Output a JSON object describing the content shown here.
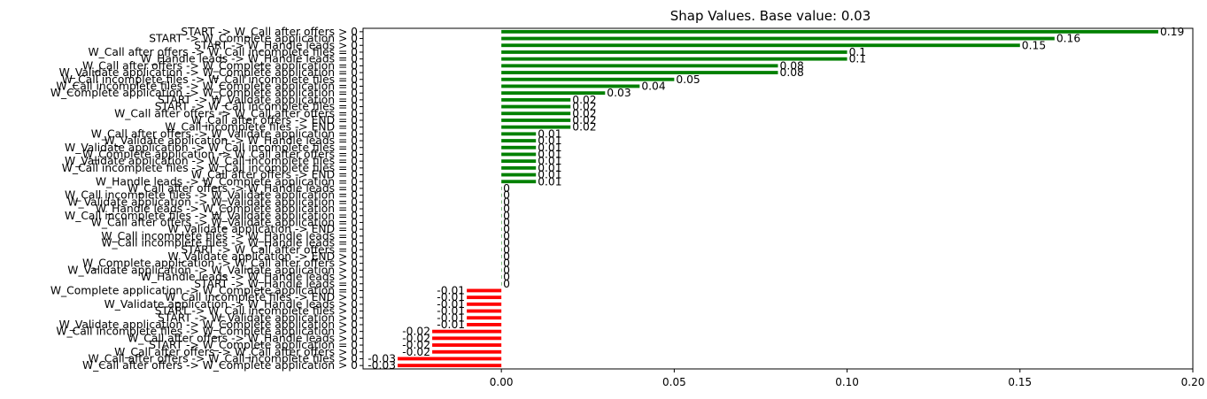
{
  "chart_data": {
    "type": "bar",
    "orientation": "horizontal",
    "title": "Shap Values. Base value: 0.03",
    "xlabel": "",
    "ylabel": "",
    "xlim": [
      -0.04,
      0.2
    ],
    "xticks": [
      "0.00",
      "0.05",
      "0.10",
      "0.15",
      "0.20"
    ],
    "xtick_values": [
      0,
      0.05,
      0.1,
      0.15,
      0.2
    ],
    "grid": false,
    "legend": "none",
    "colors": {
      "positive": "#008000",
      "negative": "#ff0000",
      "zero": "#008000"
    },
    "categories": [
      "START -> W_Call after offers > 0",
      "START -> W_Complete application > 0",
      "START -> W_Handle leads > 0",
      "W_Call after offers -> W_Call incomplete files = 0",
      "W_Handle leads -> W_Handle leads = 0",
      "W_Call after offers -> W_Complete application = 0",
      "W_Validate application -> W_Complete application = 0",
      "W_Call incomplete files -> W_Call incomplete files = 0",
      "W_Call incomplete files -> W_Complete application = 0",
      "W_Complete application -> W_Complete application = 0",
      "START -> W_Validate application = 0",
      "START -> W_Call incomplete files = 0",
      "W_Call after offers -> W_Call after offers = 0",
      "W_Call after offers -> END = 0",
      "W_Call incomplete files -> END = 0",
      "W_Call after offers -> W_Validate application = 0",
      "W_Validate application -> W_Handle leads = 0",
      "W_Validate application -> W_Call incomplete files = 0",
      "W_Complete application -> W_Call after offers = 0",
      "W_Validate application -> W_Call incomplete files = 0",
      "W_Call incomplete files -> W_Call incomplete files = 0",
      "W_Call after offers -> END = 0",
      "W_Handle leads -> W_Complete application = 0",
      "W_Call after offers -> W_Handle leads = 0",
      "W_Call incomplete files -> W_Validate application = 0",
      "W_Validate application -> W_Validate application = 0",
      "W_Handle leads -> W_Complete application = 0",
      "W_Call incomplete files -> W_Validate application = 0",
      "W_Call after offers -> W_Validate application = 0",
      "W_Validate application -> END = 0",
      "W_Call incomplete files -> W_Handle leads = 0",
      "W_Call incomplete files -> W_Handle leads = 0",
      "START -> W_Call after offers = 0",
      "W_Validate application -> END > 0",
      "W_Complete application -> W_Call after offers > 0",
      "W_Validate application -> W_Validate application > 0",
      "W_Handle leads -> W_Handle leads > 0",
      "START -> W_Handle leads = 0",
      "W_Complete application -> W_Complete application = 0",
      "W_Call incomplete files -> END > 0",
      "W_Validate application -> W_Handle leads > 0",
      "START -> W_Call incomplete files > 0",
      "START -> W_Validate application > 0",
      "W_Validate application -> W_Complete application > 0",
      "W_Call incomplete files -> W_Complete application > 0",
      "W_Call after offers -> W_Handle leads > 0",
      "START -> W_Complete application = 0",
      "W_Call after offers -> W_Call after offers > 0",
      "W_Call after offers -> W_Call incomplete files > 0",
      "W_Call after offers -> W_Complete application > 0"
    ],
    "values": [
      0.19,
      0.16,
      0.15,
      0.1,
      0.1,
      0.08,
      0.08,
      0.05,
      0.04,
      0.03,
      0.02,
      0.02,
      0.02,
      0.02,
      0.02,
      0.01,
      0.01,
      0.01,
      0.01,
      0.01,
      0.01,
      0.01,
      0.01,
      0,
      0,
      0,
      0,
      0,
      0,
      0,
      0,
      0,
      0,
      0,
      0,
      0,
      0,
      0,
      -0.01,
      -0.01,
      -0.01,
      -0.01,
      -0.01,
      -0.01,
      -0.02,
      -0.02,
      -0.02,
      -0.02,
      -0.03,
      -0.03
    ],
    "value_labels": [
      "0.19",
      "0.16",
      "0.15",
      "0.1",
      "0.1",
      "0.08",
      "0.08",
      "0.05",
      "0.04",
      "0.03",
      "0.02",
      "0.02",
      "0.02",
      "0.02",
      "0.02",
      "0.01",
      "0.01",
      "0.01",
      "0.01",
      "0.01",
      "0.01",
      "0.01",
      "0.01",
      "0",
      "0",
      "0",
      "0",
      "0",
      "0",
      "0",
      "0",
      "0",
      "0",
      "0",
      "0",
      "0",
      "0",
      "0",
      "-0.01",
      "-0.01",
      "-0.01",
      "-0.01",
      "-0.01",
      "-0.01",
      "-0.02",
      "-0.02",
      "-0.02",
      "-0.02",
      "-0.03",
      "-0.03"
    ]
  }
}
